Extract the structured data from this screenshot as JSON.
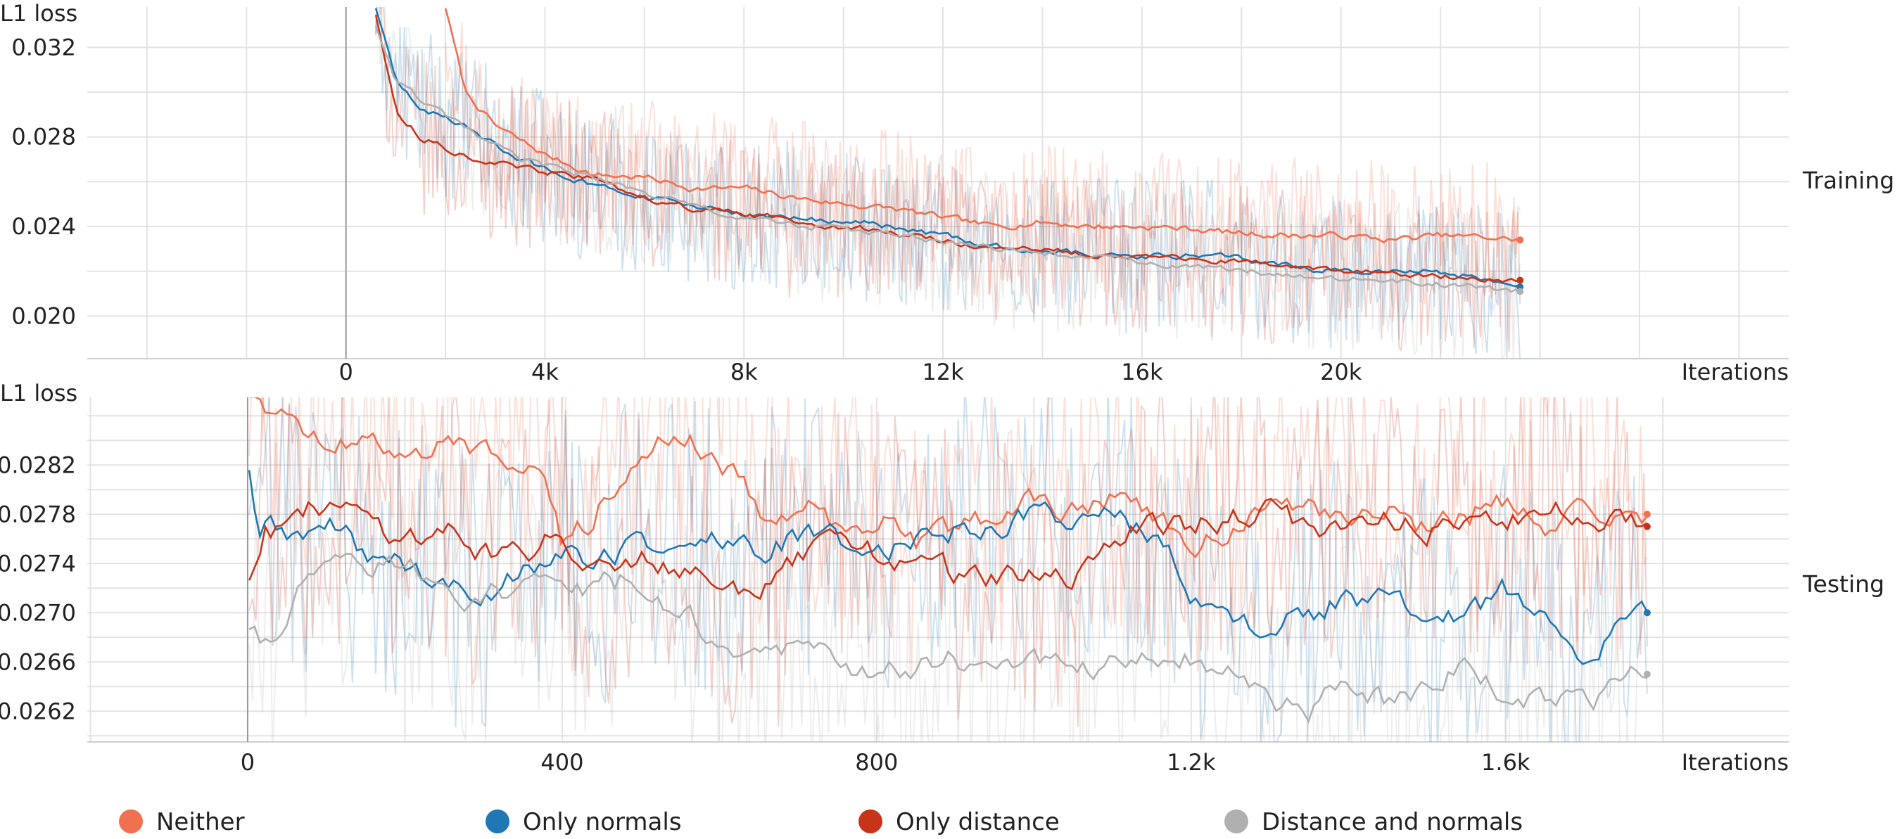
{
  "chart_data": [
    {
      "type": "line",
      "title": "Training",
      "ylabel": "L1 loss",
      "xlabel": "Iterations",
      "xlim": [
        -5200,
        29000
      ],
      "ylim": [
        0.0181,
        0.0338
      ],
      "x_ticks": [
        0,
        4000,
        8000,
        12000,
        16000,
        20000
      ],
      "x_tick_labels": [
        "0",
        "4k",
        "8k",
        "12k",
        "16k",
        "20k"
      ],
      "y_ticks": [
        0.02,
        0.024,
        0.028,
        0.032
      ],
      "y_tick_labels": [
        "0.020",
        "0.024",
        "0.028",
        "0.032"
      ],
      "grid": true,
      "series": [
        {
          "name": "Neither",
          "color": "#f07050",
          "x": [
            2000,
            2400,
            3000,
            4000,
            5000,
            6000,
            7000,
            8000,
            9000,
            10000,
            11000,
            12000,
            13000,
            14000,
            15000,
            16000,
            17000,
            18000,
            19000,
            20000,
            21000,
            22000,
            23000,
            23600
          ],
          "y": [
            0.0338,
            0.03,
            0.0285,
            0.0272,
            0.0263,
            0.0262,
            0.0257,
            0.0257,
            0.0253,
            0.025,
            0.0248,
            0.0244,
            0.024,
            0.0242,
            0.024,
            0.024,
            0.0239,
            0.0237,
            0.0236,
            0.0236,
            0.0234,
            0.0236,
            0.0235,
            0.0234
          ]
        },
        {
          "name": "Only normals",
          "color": "#1f77b4",
          "x": [
            600,
            1000,
            1600,
            2500,
            3500,
            5000,
            6000,
            7000,
            8000,
            9000,
            10000,
            11000,
            12000,
            13000,
            14000,
            15000,
            16000,
            17000,
            18000,
            19000,
            20000,
            21000,
            22000,
            23000,
            23600
          ],
          "y": [
            0.0338,
            0.0305,
            0.0292,
            0.0283,
            0.027,
            0.0258,
            0.0253,
            0.0249,
            0.0245,
            0.0244,
            0.0242,
            0.024,
            0.0236,
            0.0231,
            0.0229,
            0.0228,
            0.0227,
            0.0227,
            0.0226,
            0.0222,
            0.022,
            0.022,
            0.022,
            0.0216,
            0.0213
          ]
        },
        {
          "name": "Only distance",
          "color": "#c8341a",
          "x": [
            600,
            1000,
            1500,
            2500,
            3500,
            5000,
            6000,
            7000,
            8000,
            9000,
            10000,
            11000,
            12000,
            13000,
            14000,
            15000,
            16000,
            17000,
            18000,
            19000,
            20000,
            21000,
            22000,
            23000,
            23600
          ],
          "y": [
            0.0335,
            0.0292,
            0.028,
            0.0271,
            0.0266,
            0.0261,
            0.0253,
            0.0248,
            0.0245,
            0.0243,
            0.024,
            0.0237,
            0.0234,
            0.023,
            0.0229,
            0.0228,
            0.0227,
            0.0225,
            0.0224,
            0.0222,
            0.022,
            0.0219,
            0.0218,
            0.0217,
            0.0216
          ]
        },
        {
          "name": "Distance and normals",
          "color": "#b0b0b0",
          "x": [
            600,
            1000,
            1600,
            2500,
            3500,
            5000,
            6000,
            7000,
            8000,
            9000,
            10000,
            11000,
            12000,
            13000,
            14000,
            15000,
            16000,
            17000,
            18000,
            19000,
            20000,
            21000,
            22000,
            23000,
            23600
          ],
          "y": [
            0.033,
            0.0305,
            0.0295,
            0.0282,
            0.027,
            0.0262,
            0.0255,
            0.0249,
            0.0243,
            0.0241,
            0.0239,
            0.0236,
            0.0233,
            0.023,
            0.0228,
            0.0226,
            0.0224,
            0.0222,
            0.022,
            0.0219,
            0.0217,
            0.0216,
            0.0214,
            0.0212,
            0.0211
          ]
        }
      ]
    },
    {
      "type": "line",
      "title": "Testing",
      "ylabel": "L1 loss",
      "xlabel": "Iterations",
      "xlim": [
        -204,
        1960
      ],
      "ylim": [
        0.02595,
        0.02875
      ],
      "x_ticks": [
        0,
        400,
        800,
        1200,
        1600
      ],
      "x_tick_labels": [
        "0",
        "400",
        "800",
        "1.2k",
        "1.6k"
      ],
      "y_ticks": [
        0.0262,
        0.0266,
        0.027,
        0.0274,
        0.0278,
        0.0282
      ],
      "y_tick_labels": [
        "0.0262",
        "0.0266",
        "0.0270",
        "0.0274",
        "0.0278",
        "0.0282"
      ],
      "grid": true,
      "series": [
        {
          "name": "Neither",
          "color": "#f07050",
          "x": [
            2,
            30,
            60,
            100,
            150,
            200,
            250,
            300,
            350,
            380,
            400,
            430,
            460,
            500,
            530,
            560,
            600,
            650,
            700,
            750,
            800,
            850,
            900,
            950,
            1000,
            1050,
            1100,
            1150,
            1200,
            1250,
            1300,
            1350,
            1400,
            1450,
            1500,
            1550,
            1600,
            1650,
            1700,
            1750,
            1780
          ],
          "y": [
            0.0288,
            0.0287,
            0.0285,
            0.0284,
            0.0284,
            0.0283,
            0.0284,
            0.0283,
            0.0283,
            0.0281,
            0.0276,
            0.0277,
            0.028,
            0.0284,
            0.0285,
            0.0284,
            0.0283,
            0.0278,
            0.0279,
            0.0277,
            0.0278,
            0.0276,
            0.0277,
            0.0278,
            0.0279,
            0.0278,
            0.028,
            0.0278,
            0.0275,
            0.0277,
            0.0278,
            0.0278,
            0.0278,
            0.0278,
            0.0277,
            0.0278,
            0.0279,
            0.0277,
            0.0278,
            0.0277,
            0.0278
          ]
        },
        {
          "name": "Only normals",
          "color": "#1f77b4",
          "x": [
            2,
            15,
            30,
            60,
            100,
            150,
            200,
            250,
            300,
            350,
            400,
            450,
            500,
            550,
            600,
            650,
            700,
            750,
            800,
            850,
            900,
            950,
            1000,
            1050,
            1100,
            1150,
            1200,
            1250,
            1300,
            1350,
            1400,
            1450,
            1500,
            1550,
            1600,
            1650,
            1700,
            1750,
            1780
          ],
          "y": [
            0.0282,
            0.0276,
            0.0277,
            0.0276,
            0.0277,
            0.0275,
            0.0274,
            0.0272,
            0.0271,
            0.0274,
            0.0275,
            0.0274,
            0.0276,
            0.0275,
            0.0276,
            0.0275,
            0.0276,
            0.0276,
            0.0275,
            0.0276,
            0.0277,
            0.0277,
            0.0278,
            0.0278,
            0.0278,
            0.0276,
            0.0272,
            0.0269,
            0.0269,
            0.027,
            0.0271,
            0.0271,
            0.0269,
            0.027,
            0.0272,
            0.0269,
            0.0266,
            0.0269,
            0.027
          ]
        },
        {
          "name": "Only distance",
          "color": "#c8341a",
          "x": [
            2,
            20,
            50,
            100,
            150,
            200,
            250,
            300,
            350,
            400,
            450,
            500,
            550,
            600,
            650,
            700,
            750,
            800,
            850,
            900,
            950,
            1000,
            1050,
            1100,
            1150,
            1200,
            1250,
            1300,
            1350,
            1400,
            1450,
            1500,
            1550,
            1600,
            1650,
            1700,
            1750,
            1780
          ],
          "y": [
            0.0273,
            0.0277,
            0.0277,
            0.0279,
            0.0278,
            0.0276,
            0.0277,
            0.0275,
            0.0275,
            0.0276,
            0.0274,
            0.0275,
            0.0274,
            0.0273,
            0.0271,
            0.0274,
            0.0276,
            0.0275,
            0.0274,
            0.0273,
            0.0273,
            0.0273,
            0.0272,
            0.0276,
            0.0278,
            0.0277,
            0.0278,
            0.0278,
            0.0277,
            0.0277,
            0.0278,
            0.0277,
            0.0278,
            0.0277,
            0.0278,
            0.0278,
            0.0278,
            0.0277
          ]
        },
        {
          "name": "Distance and normals",
          "color": "#b0b0b0",
          "x": [
            2,
            20,
            40,
            80,
            120,
            160,
            200,
            250,
            300,
            350,
            400,
            450,
            500,
            550,
            600,
            650,
            700,
            750,
            800,
            850,
            900,
            950,
            1000,
            1050,
            1100,
            1150,
            1200,
            1250,
            1300,
            1350,
            1400,
            1450,
            1500,
            1550,
            1600,
            1650,
            1700,
            1750,
            1780
          ],
          "y": [
            0.0269,
            0.0267,
            0.0268,
            0.0274,
            0.0275,
            0.0274,
            0.0274,
            0.0272,
            0.0271,
            0.0272,
            0.0272,
            0.0272,
            0.0273,
            0.027,
            0.0268,
            0.0266,
            0.0267,
            0.0266,
            0.0265,
            0.0266,
            0.0266,
            0.0267,
            0.0266,
            0.0265,
            0.0266,
            0.0267,
            0.0266,
            0.0265,
            0.0263,
            0.0262,
            0.0265,
            0.0263,
            0.0264,
            0.0266,
            0.0263,
            0.0263,
            0.0262,
            0.0264,
            0.0265
          ]
        }
      ]
    }
  ],
  "legend": [
    {
      "label": "Neither",
      "color": "#f07050"
    },
    {
      "label": "Only normals",
      "color": "#1f77b4"
    },
    {
      "label": "Only distance",
      "color": "#c8341a"
    },
    {
      "label": "Distance and normals",
      "color": "#b0b0b0"
    }
  ]
}
